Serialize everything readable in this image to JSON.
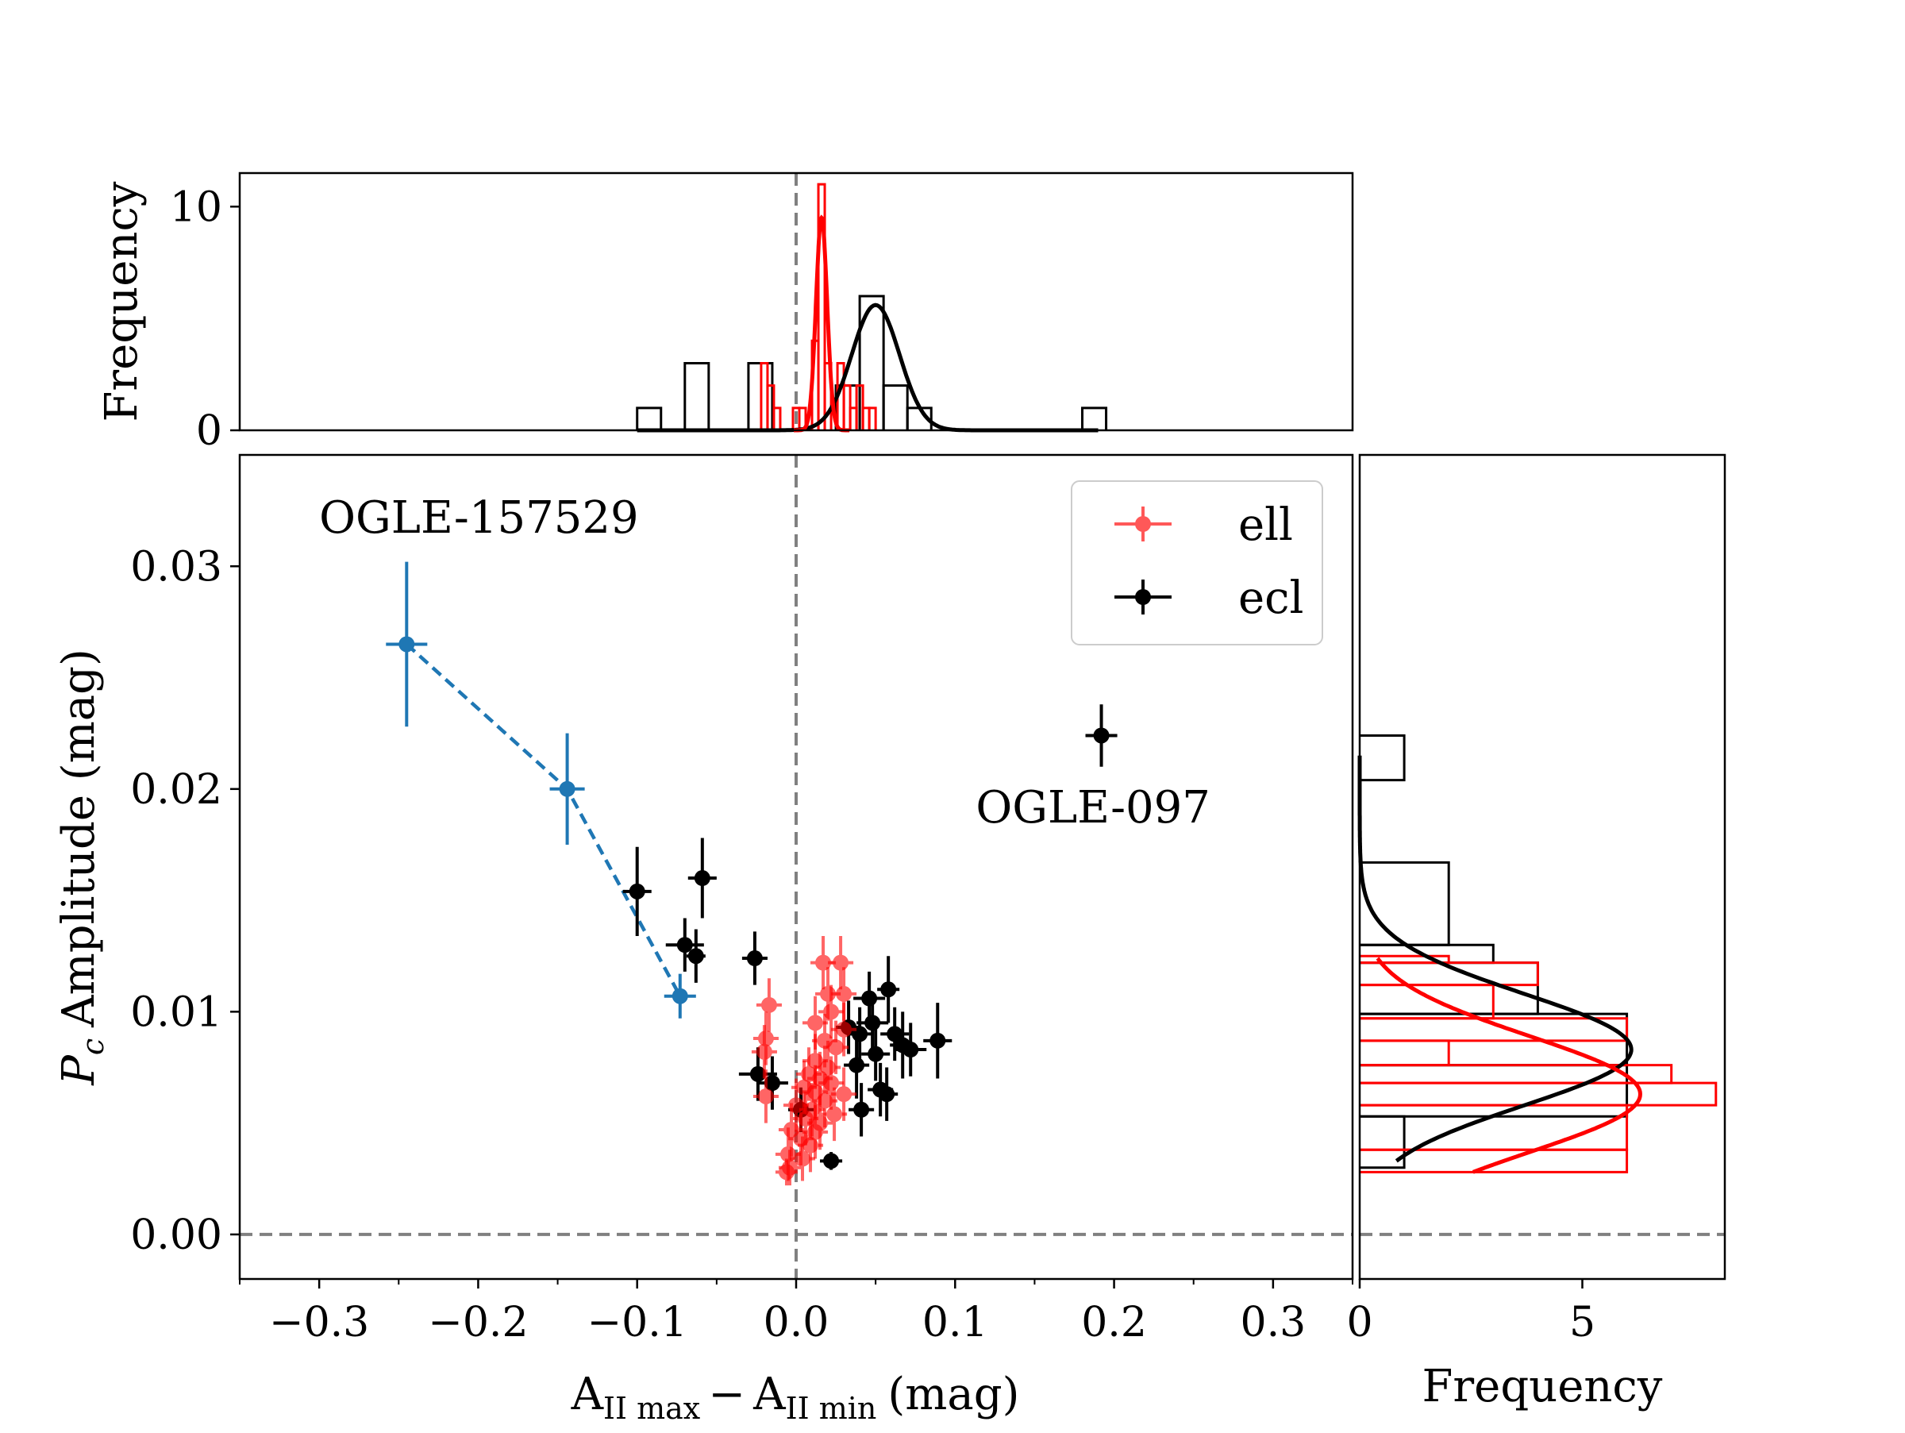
{
  "chart_data": {
    "type": "scatter",
    "main": {
      "xlabel_parts": {
        "a": "A",
        "sub_max": "II max",
        "minus": "−",
        "sub_min": "II min",
        "unit": "(mag)"
      },
      "ylabel_parts": {
        "sym": "P",
        "sub": "c",
        "rest": "Amplitude (mag)"
      },
      "xlim": [
        -0.35,
        0.35
      ],
      "ylim": [
        -0.002,
        0.035
      ],
      "xticks": [
        -0.3,
        -0.2,
        -0.1,
        0.0,
        0.1,
        0.2,
        0.3
      ],
      "xtick_labels": [
        "−0.3",
        "−0.2",
        "−0.1",
        "0.0",
        "0.1",
        "0.2",
        "0.3"
      ],
      "yticks": [
        0.0,
        0.01,
        0.02,
        0.03
      ],
      "ytick_labels": [
        "0.00",
        "0.01",
        "0.02",
        "0.03"
      ],
      "ref_lines": {
        "x": 0.0,
        "y": 0.0
      },
      "legend": {
        "location": "top-right",
        "entries": [
          {
            "label": "ell",
            "color": "#ff0000"
          },
          {
            "label": "ecl",
            "color": "#000000"
          }
        ]
      },
      "annotations": [
        {
          "text": "OGLE-157529",
          "x": -0.3,
          "y": 0.0315
        },
        {
          "text": "OGLE-097",
          "x": 0.113,
          "y": 0.0185
        }
      ],
      "series": [
        {
          "name": "OGLE-157529 track",
          "color": "#1f77b4",
          "linestyle": "dashed",
          "points": [
            {
              "x": -0.245,
              "y": 0.0265,
              "xerr": 0.013,
              "yerr": 0.0037
            },
            {
              "x": -0.144,
              "y": 0.02,
              "xerr": 0.011,
              "yerr": 0.0025
            },
            {
              "x": -0.073,
              "y": 0.0107,
              "xerr": 0.01,
              "yerr": 0.001
            }
          ]
        },
        {
          "name": "ecl",
          "color": "#000000",
          "points": [
            {
              "x": 0.192,
              "y": 0.0224,
              "xerr": 0.01,
              "yerr": 0.0014
            },
            {
              "x": -0.1,
              "y": 0.0154,
              "xerr": 0.009,
              "yerr": 0.002
            },
            {
              "x": -0.059,
              "y": 0.016,
              "xerr": 0.009,
              "yerr": 0.0018
            },
            {
              "x": -0.07,
              "y": 0.013,
              "xerr": 0.012,
              "yerr": 0.0012
            },
            {
              "x": -0.063,
              "y": 0.0125,
              "xerr": 0.006,
              "yerr": 0.0012
            },
            {
              "x": -0.026,
              "y": 0.0124,
              "xerr": 0.008,
              "yerr": 0.0012
            },
            {
              "x": 0.046,
              "y": 0.0106,
              "xerr": 0.01,
              "yerr": 0.0012
            },
            {
              "x": 0.058,
              "y": 0.011,
              "xerr": 0.007,
              "yerr": 0.0015
            },
            {
              "x": 0.033,
              "y": 0.0093,
              "xerr": 0.008,
              "yerr": 0.0012
            },
            {
              "x": 0.048,
              "y": 0.0095,
              "xerr": 0.01,
              "yerr": 0.0012
            },
            {
              "x": 0.04,
              "y": 0.009,
              "xerr": 0.008,
              "yerr": 0.0012
            },
            {
              "x": 0.062,
              "y": 0.009,
              "xerr": 0.009,
              "yerr": 0.0012
            },
            {
              "x": 0.067,
              "y": 0.0085,
              "xerr": 0.008,
              "yerr": 0.0015
            },
            {
              "x": 0.089,
              "y": 0.0087,
              "xerr": 0.009,
              "yerr": 0.0017
            },
            {
              "x": 0.072,
              "y": 0.0083,
              "xerr": 0.01,
              "yerr": 0.0012
            },
            {
              "x": 0.05,
              "y": 0.0081,
              "xerr": 0.009,
              "yerr": 0.0012
            },
            {
              "x": 0.038,
              "y": 0.0076,
              "xerr": 0.008,
              "yerr": 0.0015
            },
            {
              "x": -0.024,
              "y": 0.0072,
              "xerr": 0.012,
              "yerr": 0.0012
            },
            {
              "x": -0.015,
              "y": 0.0068,
              "xerr": 0.01,
              "yerr": 0.0012
            },
            {
              "x": 0.053,
              "y": 0.0065,
              "xerr": 0.008,
              "yerr": 0.0012
            },
            {
              "x": 0.057,
              "y": 0.0063,
              "xerr": 0.007,
              "yerr": 0.0012
            },
            {
              "x": 0.003,
              "y": 0.0056,
              "xerr": 0.008,
              "yerr": 0.001
            },
            {
              "x": 0.041,
              "y": 0.0056,
              "xerr": 0.008,
              "yerr": 0.0012
            },
            {
              "x": 0.022,
              "y": 0.0033,
              "xerr": 0.007,
              "yerr": 0.0004
            }
          ]
        },
        {
          "name": "ell",
          "color": "#ff0000",
          "points": [
            {
              "x": 0.017,
              "y": 0.0122,
              "xerr": 0.008,
              "yerr": 0.0012
            },
            {
              "x": 0.028,
              "y": 0.0122,
              "xerr": 0.008,
              "yerr": 0.0012
            },
            {
              "x": 0.02,
              "y": 0.0108,
              "xerr": 0.008,
              "yerr": 0.0012
            },
            {
              "x": 0.03,
              "y": 0.0108,
              "xerr": 0.008,
              "yerr": 0.0012
            },
            {
              "x": -0.017,
              "y": 0.0103,
              "xerr": 0.008,
              "yerr": 0.0012
            },
            {
              "x": 0.022,
              "y": 0.01,
              "xerr": 0.008,
              "yerr": 0.0012
            },
            {
              "x": 0.012,
              "y": 0.0095,
              "xerr": 0.008,
              "yerr": 0.0012
            },
            {
              "x": 0.03,
              "y": 0.0092,
              "xerr": 0.008,
              "yerr": 0.0012
            },
            {
              "x": -0.019,
              "y": 0.0088,
              "xerr": 0.008,
              "yerr": 0.0012
            },
            {
              "x": 0.018,
              "y": 0.0087,
              "xerr": 0.008,
              "yerr": 0.0012
            },
            {
              "x": 0.025,
              "y": 0.0084,
              "xerr": 0.008,
              "yerr": 0.0012
            },
            {
              "x": -0.02,
              "y": 0.0082,
              "xerr": 0.008,
              "yerr": 0.0012
            },
            {
              "x": 0.012,
              "y": 0.0078,
              "xerr": 0.008,
              "yerr": 0.0012
            },
            {
              "x": 0.02,
              "y": 0.0075,
              "xerr": 0.008,
              "yerr": 0.0012
            },
            {
              "x": 0.008,
              "y": 0.0072,
              "xerr": 0.008,
              "yerr": 0.0012
            },
            {
              "x": 0.015,
              "y": 0.007,
              "xerr": 0.008,
              "yerr": 0.0012
            },
            {
              "x": 0.022,
              "y": 0.0068,
              "xerr": 0.008,
              "yerr": 0.0012
            },
            {
              "x": 0.005,
              "y": 0.0066,
              "xerr": 0.008,
              "yerr": 0.0012
            },
            {
              "x": 0.012,
              "y": 0.0064,
              "xerr": 0.008,
              "yerr": 0.0012
            },
            {
              "x": 0.03,
              "y": 0.0063,
              "xerr": 0.008,
              "yerr": 0.0012
            },
            {
              "x": -0.019,
              "y": 0.0062,
              "xerr": 0.008,
              "yerr": 0.0012
            },
            {
              "x": 0.018,
              "y": 0.006,
              "xerr": 0.008,
              "yerr": 0.0012
            },
            {
              "x": 0.0,
              "y": 0.0058,
              "xerr": 0.008,
              "yerr": 0.0012
            },
            {
              "x": 0.01,
              "y": 0.0056,
              "xerr": 0.008,
              "yerr": 0.0012
            },
            {
              "x": 0.024,
              "y": 0.0054,
              "xerr": 0.008,
              "yerr": 0.0012
            },
            {
              "x": 0.006,
              "y": 0.0052,
              "xerr": 0.008,
              "yerr": 0.0012
            },
            {
              "x": 0.015,
              "y": 0.005,
              "xerr": 0.008,
              "yerr": 0.0012
            },
            {
              "x": -0.003,
              "y": 0.0047,
              "xerr": 0.008,
              "yerr": 0.0012
            },
            {
              "x": 0.012,
              "y": 0.0046,
              "xerr": 0.008,
              "yerr": 0.0012
            },
            {
              "x": 0.003,
              "y": 0.0043,
              "xerr": 0.008,
              "yerr": 0.0012
            },
            {
              "x": 0.009,
              "y": 0.004,
              "xerr": 0.008,
              "yerr": 0.0012
            },
            {
              "x": -0.005,
              "y": 0.0036,
              "xerr": 0.008,
              "yerr": 0.0012
            },
            {
              "x": 0.004,
              "y": 0.0034,
              "xerr": 0.008,
              "yerr": 0.001
            },
            {
              "x": -0.004,
              "y": 0.003,
              "xerr": 0.007,
              "yerr": 0.0008
            },
            {
              "x": -0.006,
              "y": 0.0028,
              "xerr": 0.007,
              "yerr": 0.0006
            }
          ]
        }
      ]
    },
    "top_hist": {
      "ylabel": "Frequency",
      "ylim": [
        0,
        11.5
      ],
      "yticks": [
        0,
        10
      ],
      "ytick_labels": [
        "0",
        "10"
      ],
      "ref_line_x": 0.0,
      "ecl_bins": [
        {
          "x0": -0.1,
          "x1": -0.085,
          "count": 1
        },
        {
          "x0": -0.07,
          "x1": -0.055,
          "count": 3
        },
        {
          "x0": -0.03,
          "x1": -0.015,
          "count": 3
        },
        {
          "x0": 0.025,
          "x1": 0.04,
          "count": 2
        },
        {
          "x0": 0.04,
          "x1": 0.055,
          "count": 6
        },
        {
          "x0": 0.055,
          "x1": 0.07,
          "count": 2
        },
        {
          "x0": 0.07,
          "x1": 0.085,
          "count": 1
        },
        {
          "x0": 0.18,
          "x1": 0.195,
          "count": 1
        }
      ],
      "ell_bins": [
        {
          "x0": -0.022,
          "x1": -0.018,
          "count": 3
        },
        {
          "x0": -0.018,
          "x1": -0.014,
          "count": 2
        },
        {
          "x0": -0.014,
          "x1": -0.01,
          "count": 1
        },
        {
          "x0": -0.002,
          "x1": 0.002,
          "count": 1
        },
        {
          "x0": 0.002,
          "x1": 0.006,
          "count": 1
        },
        {
          "x0": 0.01,
          "x1": 0.014,
          "count": 4
        },
        {
          "x0": 0.014,
          "x1": 0.018,
          "count": 11
        },
        {
          "x0": 0.018,
          "x1": 0.022,
          "count": 3
        },
        {
          "x0": 0.026,
          "x1": 0.03,
          "count": 3
        },
        {
          "x0": 0.03,
          "x1": 0.034,
          "count": 2
        },
        {
          "x0": 0.034,
          "x1": 0.038,
          "count": 1
        },
        {
          "x0": 0.038,
          "x1": 0.042,
          "count": 2
        },
        {
          "x0": 0.042,
          "x1": 0.046,
          "count": 1
        },
        {
          "x0": 0.046,
          "x1": 0.05,
          "count": 1
        }
      ],
      "fits": [
        {
          "series": "ecl",
          "color": "#000000",
          "amp": 5.6,
          "mu": 0.05,
          "sigma": 0.015
        },
        {
          "series": "ell",
          "color": "#ff0000",
          "amp": 9.5,
          "mu": 0.016,
          "sigma": 0.0035
        }
      ]
    },
    "right_hist": {
      "xlabel": "Frequency",
      "xlim": [
        0,
        8.2
      ],
      "xticks": [
        0,
        5
      ],
      "xtick_labels": [
        "0",
        "5"
      ],
      "ref_line_y": 0.0,
      "ecl_bins": [
        {
          "y0": 0.003,
          "y1": 0.0053,
          "count": 1
        },
        {
          "y0": 0.0053,
          "y1": 0.0076,
          "count": 6
        },
        {
          "y0": 0.0076,
          "y1": 0.0099,
          "count": 6
        },
        {
          "y0": 0.0099,
          "y1": 0.0122,
          "count": 4
        },
        {
          "y0": 0.0122,
          "y1": 0.013,
          "count": 3
        },
        {
          "y0": 0.013,
          "y1": 0.0167,
          "count": 2
        },
        {
          "y0": 0.0167,
          "y1": 0.0204,
          "count": 0
        },
        {
          "y0": 0.0204,
          "y1": 0.0224,
          "count": 1
        }
      ],
      "ell_bins": [
        {
          "y0": 0.0028,
          "y1": 0.0038,
          "count": 6
        },
        {
          "y0": 0.0038,
          "y1": 0.0058,
          "count": 6
        },
        {
          "y0": 0.0058,
          "y1": 0.0068,
          "count": 8
        },
        {
          "y0": 0.0068,
          "y1": 0.0076,
          "count": 7
        },
        {
          "y0": 0.0076,
          "y1": 0.0087,
          "count": 2
        },
        {
          "y0": 0.0087,
          "y1": 0.0097,
          "count": 6
        },
        {
          "y0": 0.0097,
          "y1": 0.0112,
          "count": 3
        },
        {
          "y0": 0.0112,
          "y1": 0.0122,
          "count": 4
        },
        {
          "y0": 0.0122,
          "y1": 0.0125,
          "count": 2
        }
      ],
      "fits": [
        {
          "series": "ecl",
          "color": "#000000",
          "amp": 6.1,
          "mu": 0.0083,
          "sigma": 0.0025,
          "ymin": 0.0033,
          "ymax": 0.0215
        },
        {
          "series": "ell",
          "color": "#ff0000",
          "amp": 6.3,
          "mu": 0.0063,
          "sigma": 0.0026,
          "ymin": 0.0028,
          "ymax": 0.0124
        }
      ]
    }
  }
}
